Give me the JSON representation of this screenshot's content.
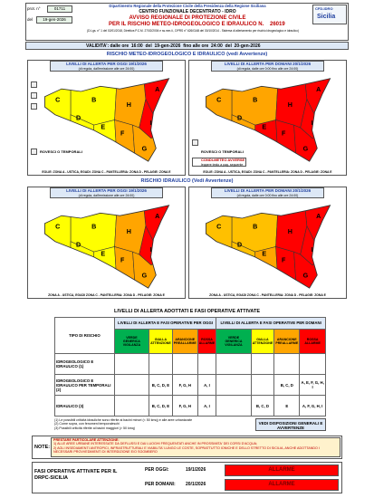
{
  "header": {
    "prot_label": "prot. n°",
    "prot": "01711",
    "del_label": "del",
    "date": "19-gen-2026",
    "dept": "Dipartimento Regionale della Protezione Civile della Presidenza della Regione Siciliana",
    "centre": "CENTRO FUNZIONALE DECENTRATO - IDRO",
    "title1": "AVVISO REGIONALE DI PROTEZIONE CIVILE",
    "title2": "PER IL RISCHIO METEO-IDROGEOLOGICO E IDRAULICO N.",
    "number": "26019",
    "legal": "(D.Lgs. n° 1 del 02/01/2018, Direttiva P.C.M. 27/02/2004 e ss.mm.ii., DPRS n° 626/GAB del 30/10/2014 - Sistema di allertamento per rischio idrogeologico e idraulico)",
    "logo1": "CFD-IDRO",
    "logo2": "Sicilia"
  },
  "validity": {
    "label": "VALIDITA': dalle ore",
    "from_time": "16:00",
    "from_del": "del",
    "from_date": "19-gen-2026",
    "to_label": "fino alle ore",
    "to_time": "24:00",
    "to_del": "del",
    "to_date": "20-gen-2026"
  },
  "sections": [
    {
      "title": "RISCHIO METEO-IDROGEOLOGICO E IDRAULICO (vedi Avvertenze)",
      "footer": "EOLIE: ZONA A - USTICA, EGADI: ZONA C - PANTELLERIA: ZONA D - PELAGIE: ZONA E",
      "legend": "ROVESCI O TEMPORALI",
      "warning": "CONDI-METEO AVVERSE",
      "warning_note": "leggere testo a pag. seguente",
      "panels": [
        {
          "title": "LIVELLI DI ALLERTA PER OGGI 19/1/2026",
          "subtitle": "(di regola, dall'emissione alle ore 24:00)",
          "zones": [
            {
              "label": "A",
              "color": "#ff0000"
            },
            {
              "label": "B",
              "color": "#ffff00"
            },
            {
              "label": "C",
              "color": "#ffff00"
            },
            {
              "label": "D",
              "color": "#ffff00"
            },
            {
              "label": "E",
              "color": "#ffff00"
            },
            {
              "label": "F",
              "color": "#ffa500"
            },
            {
              "label": "G",
              "color": "#ffa500"
            },
            {
              "label": "H",
              "color": "#ffa500"
            },
            {
              "label": "I",
              "color": "#ff0000"
            }
          ]
        },
        {
          "title": "LIVELLI DI ALLERTA PER DOMANI 20/1/2026",
          "subtitle": "(di regola, dalle ore 0:00 fino alle ore 24:00)",
          "zones": [
            {
              "label": "A",
              "color": "#ff0000"
            },
            {
              "label": "B",
              "color": "#ffa500"
            },
            {
              "label": "C",
              "color": "#ffa500"
            },
            {
              "label": "D",
              "color": "#ffa500"
            },
            {
              "label": "E",
              "color": "#ff0000"
            },
            {
              "label": "F",
              "color": "#ff0000"
            },
            {
              "label": "G",
              "color": "#ff0000"
            },
            {
              "label": "H",
              "color": "#ff0000"
            },
            {
              "label": "I",
              "color": "#ff0000"
            }
          ]
        }
      ]
    },
    {
      "title": "RISCHIO IDRAULICO (Vedi Avvertenze)",
      "footer": "ZONA A - USTICA, EGADI ZONA C - PANTELLERIA: ZONA D - PELAGIE: ZONA E",
      "panels": [
        {
          "title": "LIVELLI DI ALLERTA PER OGGI 19/1/2026",
          "subtitle": "(di regola, dall'emissione alle ore 24:00)",
          "zones": [
            {
              "label": "A",
              "color": "#ff0000"
            },
            {
              "label": "B",
              "color": "#ffff00"
            },
            {
              "label": "C",
              "color": "#ffff00"
            },
            {
              "label": "D",
              "color": "#ffff00"
            },
            {
              "label": "E",
              "color": "#ffff00"
            },
            {
              "label": "F",
              "color": "#ffa500"
            },
            {
              "label": "G",
              "color": "#ffa500"
            },
            {
              "label": "H",
              "color": "#ffa500"
            },
            {
              "label": "I",
              "color": "#ff0000"
            }
          ]
        },
        {
          "title": "LIVELLI DI ALLERTA PER DOMANI 20/1/2026",
          "subtitle": "(di regola, dalle ore 0:00 fino alle ore 24:00)",
          "zones": [
            {
              "label": "A",
              "color": "#ff0000"
            },
            {
              "label": "B",
              "color": "#ffc000"
            },
            {
              "label": "C",
              "color": "#ffc000"
            },
            {
              "label": "D",
              "color": "#ffc000"
            },
            {
              "label": "E",
              "color": "#ffa500"
            },
            {
              "label": "F",
              "color": "#ff0000"
            },
            {
              "label": "G",
              "color": "#ff0000"
            },
            {
              "label": "H",
              "color": "#ff0000"
            },
            {
              "label": "I",
              "color": "#ff0000"
            }
          ]
        }
      ]
    }
  ],
  "table": {
    "title": "LIVELLI DI ALLERTA ADOTTATI E FASI OPERATIVE ATTIVATE",
    "type_header": "TIPO DI RISCHIO",
    "oggi_header": "LIVELLI DI ALLERTA E FASI OPERATIVE PER OGGI",
    "domani_header": "LIVELLI DI ALLERTA E FASI OPERATIVE PER DOMANI",
    "levels": [
      {
        "name": "VERDE",
        "phase": "GENERICA VIGILANZA",
        "color": "#00b050"
      },
      {
        "name": "GIALLA",
        "phase": "ATTENZIONE",
        "color": "#ffff00"
      },
      {
        "name": "ARANCIONE",
        "phase": "PREALLARME",
        "color": "#ffa500"
      },
      {
        "name": "ROSSA",
        "phase": "ALLARME",
        "color": "#ff0000"
      }
    ],
    "rows": [
      {
        "label": "IDROGEOLOGICO E IDRAULICO (1)",
        "oggi": {},
        "domani": {}
      },
      {
        "label": "IDROGEOLOGICO E IDRAULICO PER TEMPORALI (2)",
        "oggi": {
          "1": "B, C, D, E",
          "2": "F, G, H",
          "3": "A, I"
        },
        "domani": {
          "2": "B, C, D",
          "3": "A, E, F, G, H, I"
        }
      },
      {
        "label": "IDRAULICO (3)",
        "oggi": {
          "1": "B, C, D, E",
          "2": "F, G, H",
          "3": "A, I"
        },
        "domani": {
          "1": "B, C, D",
          "2": "E",
          "3": "A, F, G, H, I"
        }
      }
    ]
  },
  "notes": [
    "(1) Le possibili criticità idrauliche sono riferite ai bacini minori (< 50 kmq) e alle aree urbanizzate",
    "(2) Come sopra, con fenomeni temporaleschi",
    "(3) Possibili criticità riferite ai bacini maggiori (> 50 kmq)"
  ],
  "notes_button": "VEDI DISPOSIZIONI GENERALI E AVVERTENZE",
  "note": {
    "label": "NOTE:",
    "lines": [
      "PRESTARE PARTICOLARE ATTENZIONE:",
      "1) ALLE AREE URBANE INTERESSATE DA DEFLUSSI E DAI LUOGHI FREQUENTATI ANCHE IN PROSSIMITA' DEI CORSI D'ACQUA;",
      "2) AGLI INSEDIAMENTI ANTROPICI, INFRASTRUTTURALI E VIABILITA' LUNGO LE COSTE, SOPRATTUTTO IONICHE E DELLO STRETTO DI SICILIA, ANCHE ADOTTANDO I NECESSARI PROVVEDIMENTI DI INTERDIZIONE E/O SGOMBERO"
    ]
  },
  "phases": {
    "label": "FASI OPERATIVE ATTIVATE PER IL DRPC-SICILIA",
    "rows": [
      {
        "when": "PER OGGI:",
        "date": "19/1/2026",
        "phase": "ALLARME"
      },
      {
        "when": "PER DOMANI:",
        "date": "20/1/2026",
        "phase": "ALLARME"
      }
    ]
  }
}
